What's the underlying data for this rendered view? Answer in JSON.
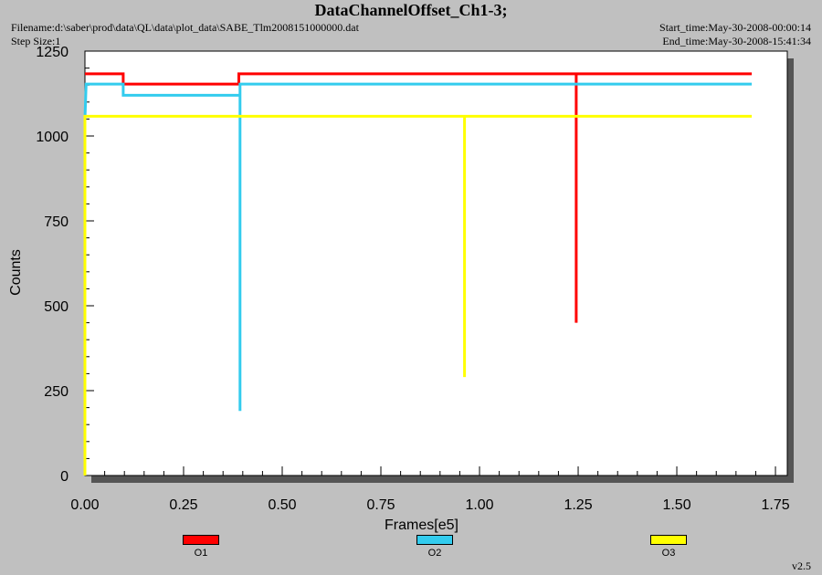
{
  "header": {
    "title": "DataChannelOffset_Ch1-3;",
    "filename": "Filename:d:\\saber\\prod\\data\\QL\\data\\plot_data\\SABE_Tlm2008151000000.dat",
    "step_size": "Step Size:1",
    "start_time": "Start_time:May-30-2008-00:00:14",
    "end_time": "End_time:May-30-2008-15:41:34"
  },
  "version": "v2.5",
  "chart_data": {
    "type": "line",
    "xlabel": "Frames[e5]",
    "ylabel": "Counts",
    "xlim": [
      0,
      1.78
    ],
    "ylim": [
      0,
      1250
    ],
    "xticks": [
      "0.00",
      "0.25",
      "0.50",
      "0.75",
      "1.00",
      "1.25",
      "1.50",
      "1.75"
    ],
    "yticks": [
      "0",
      "250",
      "500",
      "750",
      "1000",
      "1250"
    ],
    "legend_position": "bottom",
    "colors": {
      "plot_bg": "#ffffff",
      "page_bg": "#c0c0c0"
    },
    "series": [
      {
        "name": "O1",
        "color": "#ff0000",
        "points": [
          [
            0.0,
            1183
          ],
          [
            0.097,
            1183
          ],
          [
            0.097,
            1153
          ],
          [
            0.39,
            1153
          ],
          [
            0.39,
            1183
          ],
          [
            1.245,
            1183
          ],
          [
            1.245,
            450
          ],
          [
            1.245,
            1183
          ],
          [
            1.69,
            1183
          ]
        ]
      },
      {
        "name": "O2",
        "color": "#33ccee",
        "points": [
          [
            0.0,
            1050
          ],
          [
            0.003,
            1153
          ],
          [
            0.097,
            1153
          ],
          [
            0.097,
            1120
          ],
          [
            0.393,
            1120
          ],
          [
            0.393,
            190
          ],
          [
            0.393,
            1153
          ],
          [
            1.69,
            1153
          ]
        ]
      },
      {
        "name": "O3",
        "color": "#ffff00",
        "points": [
          [
            0.0,
            0
          ],
          [
            0.0,
            1058
          ],
          [
            0.962,
            1058
          ],
          [
            0.962,
            290
          ],
          [
            0.962,
            1058
          ],
          [
            1.69,
            1058
          ]
        ]
      }
    ]
  }
}
